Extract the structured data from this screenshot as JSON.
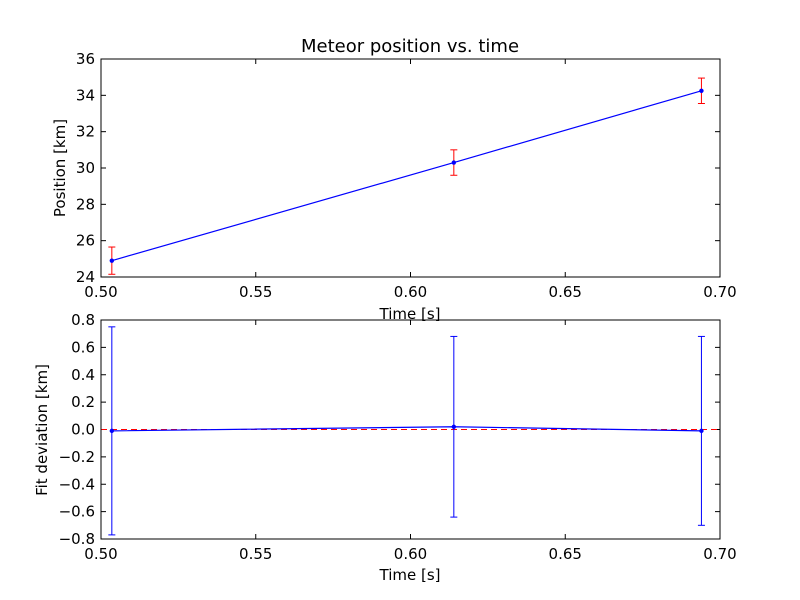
{
  "chart_data": [
    {
      "type": "line",
      "title": "Meteor position vs. time",
      "xlabel": "Time [s]",
      "ylabel": "Position [km]",
      "xlim": [
        0.5,
        0.7
      ],
      "ylim": [
        24,
        36
      ],
      "xticks": [
        "0.50",
        "0.55",
        "0.60",
        "0.65",
        "0.70"
      ],
      "yticks": [
        "24",
        "26",
        "28",
        "30",
        "32",
        "34",
        "36"
      ],
      "grid": false,
      "series": [
        {
          "x": [
            0.5035,
            0.614,
            0.694
          ],
          "y": [
            24.9,
            30.3,
            34.25
          ],
          "yerr": [
            0.75,
            0.7,
            0.7
          ],
          "line_color": "#0000ff",
          "marker_color": "#0000ff",
          "error_color": "#ff0000"
        }
      ]
    },
    {
      "type": "line",
      "title": "",
      "xlabel": "Time [s]",
      "ylabel": "Fit deviation [km]",
      "xlim": [
        0.5,
        0.7
      ],
      "ylim": [
        -0.8,
        0.8
      ],
      "xticks": [
        "0.50",
        "0.55",
        "0.60",
        "0.65",
        "0.70"
      ],
      "yticks": [
        "−0.8",
        "−0.6",
        "−0.4",
        "−0.2",
        "0.0",
        "0.2",
        "0.4",
        "0.6",
        "0.8"
      ],
      "grid": false,
      "reference_line": {
        "y": 0,
        "color": "#ff0000",
        "style": "dashed"
      },
      "series": [
        {
          "x": [
            0.5035,
            0.614,
            0.694
          ],
          "y": [
            -0.01,
            0.02,
            -0.01
          ],
          "yerr": [
            0.76,
            0.66,
            0.69
          ],
          "line_color": "#0000ff",
          "marker_color": "#0000ff",
          "error_color": "#0000ff"
        }
      ]
    }
  ]
}
